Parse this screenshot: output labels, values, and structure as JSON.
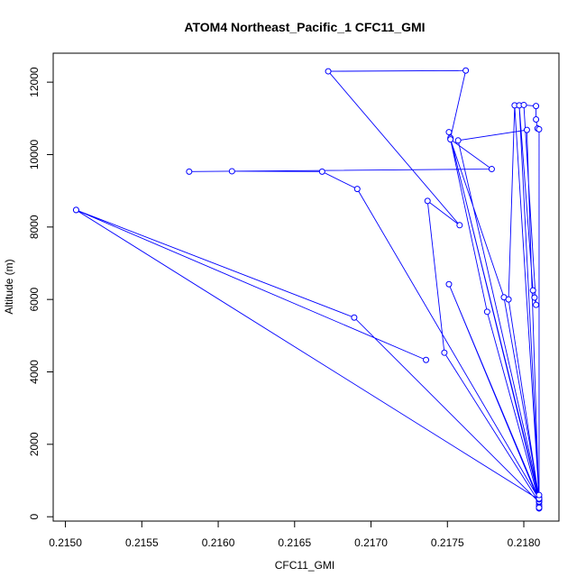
{
  "chart_data": {
    "type": "line",
    "title": "ATOM4 Northeast_Pacific_1 CFC11_GMI",
    "xlabel": "CFC11_GMI",
    "ylabel": "Altitude (m)",
    "xlim": [
      0.21492,
      0.21823
    ],
    "ylim": [
      -120,
      12800
    ],
    "x_ticks": [
      0.215,
      0.2155,
      0.216,
      0.2165,
      0.217,
      0.2175,
      0.218
    ],
    "x_tick_labels": [
      "0.2150",
      "0.2155",
      "0.2160",
      "0.2165",
      "0.2170",
      "0.2175",
      "0.2180"
    ],
    "y_ticks": [
      0,
      2000,
      4000,
      6000,
      8000,
      10000,
      12000
    ],
    "y_tick_labels": [
      "0",
      "2000",
      "4000",
      "6000",
      "8000",
      "10000",
      "12000"
    ],
    "grid": false,
    "color": "#0000ff",
    "marker": "open-circle",
    "series": [
      {
        "points": [
          [
            0.2181,
            230
          ],
          [
            0.2181,
            280
          ],
          [
            0.2181,
            260
          ],
          [
            0.2181,
            330
          ],
          [
            0.2181,
            470
          ],
          [
            0.21507,
            8470
          ],
          [
            0.21736,
            4330
          ],
          [
            0.21507,
            8470
          ],
          [
            0.21689,
            5500
          ],
          [
            0.2181,
            400
          ],
          [
            0.21748,
            4530
          ],
          [
            0.21737,
            8720
          ],
          [
            0.21758,
            8050
          ],
          [
            0.21672,
            12300
          ],
          [
            0.21762,
            12320
          ],
          [
            0.21752,
            10460
          ],
          [
            0.2181,
            470
          ],
          [
            0.21751,
            6420
          ],
          [
            0.2181,
            420
          ],
          [
            0.21776,
            5660
          ],
          [
            0.21751,
            10620
          ],
          [
            0.2181,
            540
          ],
          [
            0.21787,
            6060
          ],
          [
            0.21752,
            10420
          ],
          [
            0.21779,
            9600
          ],
          [
            0.21581,
            9530
          ],
          [
            0.21609,
            9540
          ],
          [
            0.21668,
            9530
          ],
          [
            0.21691,
            9050
          ],
          [
            0.2181,
            480
          ],
          [
            0.2179,
            6000
          ],
          [
            0.21794,
            11360
          ],
          [
            0.2181,
            500
          ],
          [
            0.21797,
            11360
          ],
          [
            0.21806,
            6250
          ],
          [
            0.21807,
            6050
          ],
          [
            0.21808,
            5850
          ],
          [
            0.218,
            11370
          ],
          [
            0.21808,
            11340
          ],
          [
            0.21808,
            10970
          ],
          [
            0.21809,
            10720
          ],
          [
            0.2181,
            10700
          ],
          [
            0.2181,
            250
          ],
          [
            0.21802,
            10680
          ],
          [
            0.21757,
            10390
          ],
          [
            0.2181,
            600
          ]
        ]
      }
    ]
  }
}
